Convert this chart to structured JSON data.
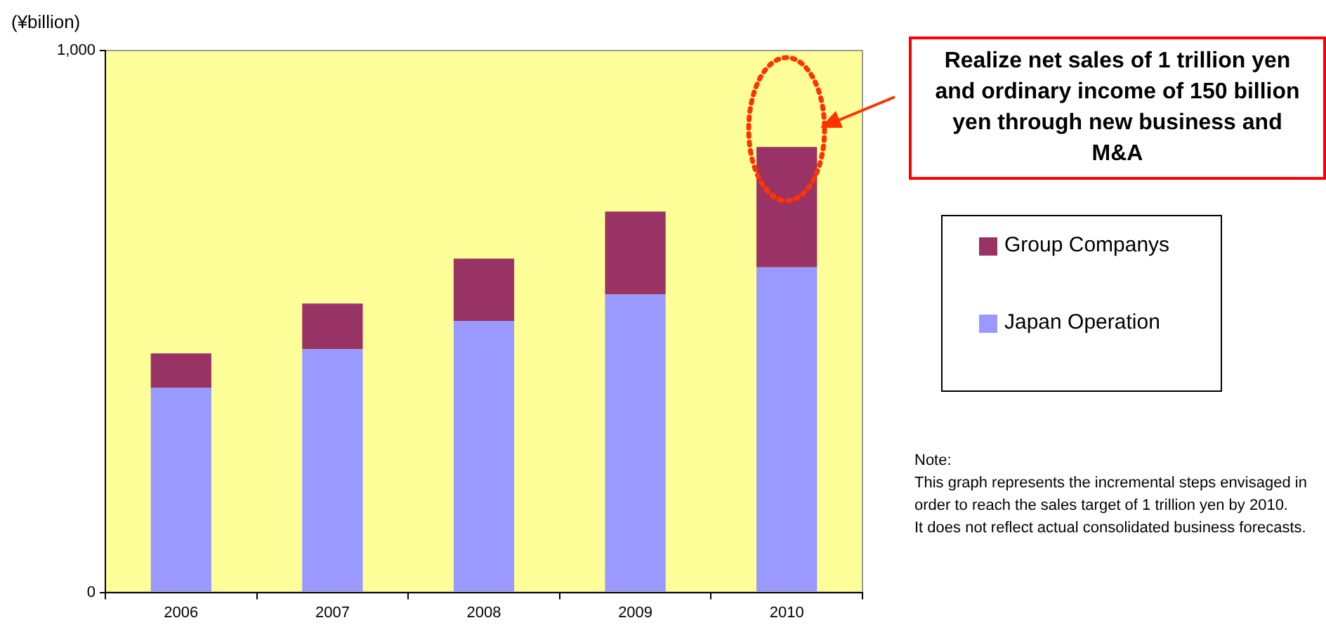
{
  "chart_data": {
    "type": "bar",
    "stacked": true,
    "ylabel": "(¥billion)",
    "categories": [
      "2006",
      "2007",
      "2008",
      "2009",
      "2010"
    ],
    "series": [
      {
        "name": "Japan Operation",
        "color": "#9999ff",
        "values": [
          378,
          449,
          501,
          550,
          600
        ]
      },
      {
        "name": "Group Companys",
        "color": "#993366",
        "values": [
          63,
          84,
          115,
          153,
          222
        ]
      }
    ],
    "ylim": [
      0,
      1000
    ],
    "yticks": [
      0,
      {
        "value": 1000,
        "label": "1,000"
      }
    ],
    "grid": false,
    "legend": "right",
    "annotations": [
      "Realize net sales of 1 trillion yen and ordinary income of 150 billion yen through new business and M&A",
      "Note:\nThis graph represents the incremental steps envisaged in order to reach the sales target of 1 trillion yen by 2010.\nIt does not reflect actual consolidated business forecasts."
    ]
  }
}
